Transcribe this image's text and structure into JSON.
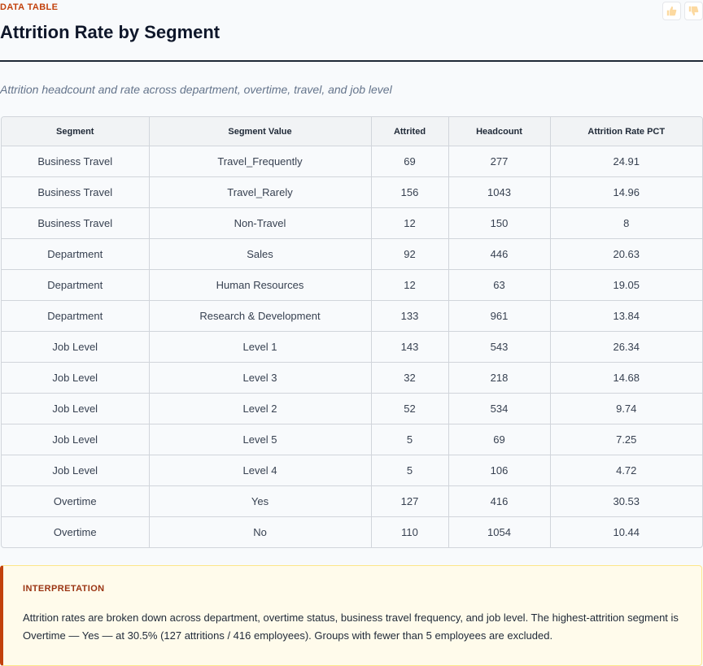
{
  "header": {
    "kicker": "DATA TABLE",
    "title": "Attrition Rate by Segment",
    "subtitle": "Attrition headcount and rate across department, overtime, travel, and job level",
    "feedback": {
      "up_icon": "thumbs-up-icon",
      "down_icon": "thumbs-down-icon"
    }
  },
  "table": {
    "columns": [
      "Segment",
      "Segment Value",
      "Attrited",
      "Headcount",
      "Attrition Rate PCT"
    ],
    "rows": [
      [
        "Business Travel",
        "Travel_Frequently",
        "69",
        "277",
        "24.91"
      ],
      [
        "Business Travel",
        "Travel_Rarely",
        "156",
        "1043",
        "14.96"
      ],
      [
        "Business Travel",
        "Non-Travel",
        "12",
        "150",
        "8"
      ],
      [
        "Department",
        "Sales",
        "92",
        "446",
        "20.63"
      ],
      [
        "Department",
        "Human Resources",
        "12",
        "63",
        "19.05"
      ],
      [
        "Department",
        "Research & Development",
        "133",
        "961",
        "13.84"
      ],
      [
        "Job Level",
        "Level 1",
        "143",
        "543",
        "26.34"
      ],
      [
        "Job Level",
        "Level 3",
        "32",
        "218",
        "14.68"
      ],
      [
        "Job Level",
        "Level 2",
        "52",
        "534",
        "9.74"
      ],
      [
        "Job Level",
        "Level 5",
        "5",
        "69",
        "7.25"
      ],
      [
        "Job Level",
        "Level 4",
        "5",
        "106",
        "4.72"
      ],
      [
        "Overtime",
        "Yes",
        "127",
        "416",
        "30.53"
      ],
      [
        "Overtime",
        "No",
        "110",
        "1054",
        "10.44"
      ]
    ]
  },
  "interpretation": {
    "title": "INTERPRETATION",
    "text": "Attrition rates are broken down across department, overtime status, business travel frequency, and job level. The highest-attrition segment is Overtime — Yes — at 30.5% (127 attritions / 416 employees). Groups with fewer than 5 employees are excluded."
  },
  "colors": {
    "accent": "#c2410c",
    "callout_bg": "#fffbeb",
    "callout_border": "#fde68a"
  }
}
